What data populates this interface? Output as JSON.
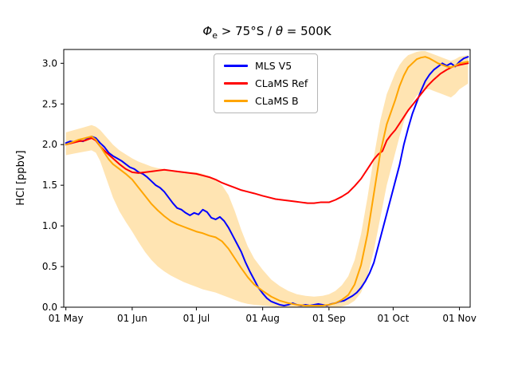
{
  "title": {
    "phi": "Φ",
    "sub_e": "e",
    "mid": " > 75°S / ",
    "theta": "θ",
    "end": " = 500K"
  },
  "chart_data": {
    "type": "line",
    "title": "Φe > 75°S / θ = 500K",
    "xlabel": "",
    "ylabel": "HCl [ppbv]",
    "xtick_labels": [
      "01 May",
      "01 Jun",
      "01 Jul",
      "01 Aug",
      "01 Sep",
      "01 Oct",
      "01 Nov"
    ],
    "xtick_days": [
      0,
      31,
      61,
      92,
      123,
      153,
      184
    ],
    "ytick_values": [
      0.0,
      0.5,
      1.0,
      1.5,
      2.0,
      2.5,
      3.0
    ],
    "xlim_days": [
      -1,
      189
    ],
    "ylim": [
      0,
      3.17
    ],
    "grid": false,
    "legend_position": "upper center",
    "band_color": "#ffa500",
    "band_opacity": 0.3,
    "series": [
      {
        "name": "MLS V5",
        "color": "#0000ff",
        "points": [
          [
            0,
            2.02
          ],
          [
            2,
            2.04
          ],
          [
            4,
            2.03
          ],
          [
            6,
            2.05
          ],
          [
            8,
            2.04
          ],
          [
            10,
            2.07
          ],
          [
            12,
            2.1
          ],
          [
            14,
            2.08
          ],
          [
            16,
            2.02
          ],
          [
            18,
            1.97
          ],
          [
            20,
            1.9
          ],
          [
            22,
            1.86
          ],
          [
            24,
            1.83
          ],
          [
            26,
            1.8
          ],
          [
            28,
            1.76
          ],
          [
            30,
            1.72
          ],
          [
            32,
            1.7
          ],
          [
            34,
            1.66
          ],
          [
            36,
            1.64
          ],
          [
            38,
            1.6
          ],
          [
            40,
            1.55
          ],
          [
            42,
            1.5
          ],
          [
            44,
            1.47
          ],
          [
            46,
            1.42
          ],
          [
            48,
            1.35
          ],
          [
            50,
            1.28
          ],
          [
            52,
            1.22
          ],
          [
            54,
            1.2
          ],
          [
            56,
            1.16
          ],
          [
            58,
            1.13
          ],
          [
            60,
            1.16
          ],
          [
            62,
            1.14
          ],
          [
            64,
            1.2
          ],
          [
            66,
            1.17
          ],
          [
            68,
            1.1
          ],
          [
            70,
            1.08
          ],
          [
            72,
            1.11
          ],
          [
            74,
            1.06
          ],
          [
            76,
            0.98
          ],
          [
            78,
            0.88
          ],
          [
            80,
            0.78
          ],
          [
            82,
            0.68
          ],
          [
            84,
            0.55
          ],
          [
            86,
            0.44
          ],
          [
            88,
            0.34
          ],
          [
            90,
            0.24
          ],
          [
            92,
            0.17
          ],
          [
            94,
            0.11
          ],
          [
            96,
            0.07
          ],
          [
            98,
            0.05
          ],
          [
            100,
            0.03
          ],
          [
            102,
            0.02
          ],
          [
            104,
            0.03
          ],
          [
            106,
            0.05
          ],
          [
            108,
            0.03
          ],
          [
            110,
            0.02
          ],
          [
            112,
            0.03
          ],
          [
            114,
            0.02
          ],
          [
            116,
            0.03
          ],
          [
            118,
            0.04
          ],
          [
            120,
            0.03
          ],
          [
            122,
            0.02
          ],
          [
            124,
            0.04
          ],
          [
            126,
            0.05
          ],
          [
            128,
            0.07
          ],
          [
            130,
            0.08
          ],
          [
            132,
            0.11
          ],
          [
            134,
            0.14
          ],
          [
            136,
            0.18
          ],
          [
            138,
            0.24
          ],
          [
            140,
            0.32
          ],
          [
            142,
            0.42
          ],
          [
            144,
            0.55
          ],
          [
            146,
            0.75
          ],
          [
            148,
            0.95
          ],
          [
            150,
            1.15
          ],
          [
            152,
            1.35
          ],
          [
            154,
            1.55
          ],
          [
            156,
            1.75
          ],
          [
            158,
            2.0
          ],
          [
            160,
            2.2
          ],
          [
            162,
            2.38
          ],
          [
            164,
            2.52
          ],
          [
            166,
            2.66
          ],
          [
            168,
            2.78
          ],
          [
            170,
            2.86
          ],
          [
            172,
            2.92
          ],
          [
            174,
            2.96
          ],
          [
            176,
            3.0
          ],
          [
            178,
            2.97
          ],
          [
            180,
            3.0
          ],
          [
            182,
            2.96
          ],
          [
            184,
            3.02
          ],
          [
            186,
            3.06
          ],
          [
            188,
            3.08
          ]
        ]
      },
      {
        "name": "CLaMS Ref",
        "color": "#ff0000",
        "points": [
          [
            0,
            2.0
          ],
          [
            3,
            2.02
          ],
          [
            6,
            2.04
          ],
          [
            9,
            2.05
          ],
          [
            12,
            2.08
          ],
          [
            14,
            2.05
          ],
          [
            16,
            1.98
          ],
          [
            19,
            1.9
          ],
          [
            22,
            1.83
          ],
          [
            25,
            1.76
          ],
          [
            28,
            1.7
          ],
          [
            31,
            1.66
          ],
          [
            34,
            1.65
          ],
          [
            37,
            1.66
          ],
          [
            40,
            1.67
          ],
          [
            43,
            1.68
          ],
          [
            46,
            1.69
          ],
          [
            49,
            1.68
          ],
          [
            52,
            1.67
          ],
          [
            55,
            1.66
          ],
          [
            58,
            1.65
          ],
          [
            61,
            1.64
          ],
          [
            64,
            1.62
          ],
          [
            67,
            1.6
          ],
          [
            70,
            1.57
          ],
          [
            73,
            1.53
          ],
          [
            76,
            1.5
          ],
          [
            79,
            1.47
          ],
          [
            82,
            1.44
          ],
          [
            85,
            1.42
          ],
          [
            88,
            1.4
          ],
          [
            92,
            1.37
          ],
          [
            95,
            1.35
          ],
          [
            98,
            1.33
          ],
          [
            101,
            1.32
          ],
          [
            104,
            1.31
          ],
          [
            107,
            1.3
          ],
          [
            110,
            1.29
          ],
          [
            113,
            1.28
          ],
          [
            116,
            1.28
          ],
          [
            119,
            1.29
          ],
          [
            123,
            1.29
          ],
          [
            126,
            1.32
          ],
          [
            129,
            1.36
          ],
          [
            132,
            1.41
          ],
          [
            135,
            1.49
          ],
          [
            138,
            1.58
          ],
          [
            141,
            1.7
          ],
          [
            144,
            1.82
          ],
          [
            146,
            1.88
          ],
          [
            148,
            1.92
          ],
          [
            150,
            2.05
          ],
          [
            152,
            2.12
          ],
          [
            154,
            2.18
          ],
          [
            157,
            2.3
          ],
          [
            160,
            2.42
          ],
          [
            163,
            2.52
          ],
          [
            166,
            2.62
          ],
          [
            169,
            2.72
          ],
          [
            172,
            2.8
          ],
          [
            175,
            2.87
          ],
          [
            178,
            2.92
          ],
          [
            181,
            2.96
          ],
          [
            184,
            2.98
          ],
          [
            188,
            3.0
          ]
        ]
      },
      {
        "name": "CLaMS B",
        "color": "#ffa500",
        "points": [
          [
            0,
            2.0
          ],
          [
            3,
            2.03
          ],
          [
            6,
            2.06
          ],
          [
            9,
            2.08
          ],
          [
            12,
            2.1
          ],
          [
            14,
            2.06
          ],
          [
            16,
            1.98
          ],
          [
            18,
            1.9
          ],
          [
            20,
            1.82
          ],
          [
            22,
            1.76
          ],
          [
            25,
            1.7
          ],
          [
            28,
            1.64
          ],
          [
            31,
            1.57
          ],
          [
            34,
            1.47
          ],
          [
            37,
            1.37
          ],
          [
            40,
            1.27
          ],
          [
            43,
            1.19
          ],
          [
            46,
            1.12
          ],
          [
            49,
            1.06
          ],
          [
            52,
            1.02
          ],
          [
            55,
            0.99
          ],
          [
            58,
            0.96
          ],
          [
            61,
            0.93
          ],
          [
            64,
            0.91
          ],
          [
            67,
            0.88
          ],
          [
            70,
            0.86
          ],
          [
            73,
            0.81
          ],
          [
            76,
            0.72
          ],
          [
            79,
            0.6
          ],
          [
            82,
            0.48
          ],
          [
            85,
            0.37
          ],
          [
            88,
            0.28
          ],
          [
            92,
            0.2
          ],
          [
            96,
            0.13
          ],
          [
            100,
            0.08
          ],
          [
            104,
            0.05
          ],
          [
            108,
            0.03
          ],
          [
            112,
            0.02
          ],
          [
            116,
            0.02
          ],
          [
            120,
            0.02
          ],
          [
            123,
            0.03
          ],
          [
            126,
            0.05
          ],
          [
            129,
            0.09
          ],
          [
            132,
            0.15
          ],
          [
            135,
            0.28
          ],
          [
            138,
            0.52
          ],
          [
            141,
            0.9
          ],
          [
            144,
            1.4
          ],
          [
            147,
            1.9
          ],
          [
            150,
            2.25
          ],
          [
            152,
            2.4
          ],
          [
            154,
            2.55
          ],
          [
            156,
            2.72
          ],
          [
            158,
            2.85
          ],
          [
            160,
            2.95
          ],
          [
            162,
            3.0
          ],
          [
            164,
            3.05
          ],
          [
            166,
            3.07
          ],
          [
            168,
            3.08
          ],
          [
            170,
            3.06
          ],
          [
            172,
            3.03
          ],
          [
            174,
            3.0
          ],
          [
            176,
            2.98
          ],
          [
            178,
            2.96
          ],
          [
            180,
            2.95
          ],
          [
            182,
            2.97
          ],
          [
            184,
            3.0
          ],
          [
            188,
            3.02
          ]
        ],
        "band": {
          "days": [
            0,
            4,
            8,
            12,
            14,
            16,
            18,
            20,
            22,
            25,
            28,
            31,
            34,
            37,
            40,
            43,
            46,
            49,
            52,
            55,
            58,
            61,
            64,
            67,
            70,
            73,
            76,
            79,
            82,
            85,
            88,
            92,
            96,
            100,
            104,
            108,
            112,
            116,
            120,
            123,
            126,
            129,
            132,
            135,
            138,
            141,
            144,
            147,
            150,
            152,
            154,
            156,
            158,
            160,
            162,
            164,
            166,
            168,
            170,
            172,
            174,
            176,
            178,
            180,
            182,
            184,
            188
          ],
          "lower": [
            1.87,
            1.89,
            1.91,
            1.93,
            1.9,
            1.8,
            1.65,
            1.5,
            1.35,
            1.18,
            1.05,
            0.93,
            0.8,
            0.68,
            0.58,
            0.5,
            0.44,
            0.39,
            0.35,
            0.31,
            0.28,
            0.25,
            0.22,
            0.2,
            0.18,
            0.15,
            0.12,
            0.09,
            0.06,
            0.04,
            0.03,
            0.02,
            0.01,
            0.0,
            0.0,
            0.0,
            0.0,
            0.0,
            0.0,
            0.0,
            0.0,
            0.01,
            0.03,
            0.08,
            0.18,
            0.38,
            0.7,
            1.1,
            1.5,
            1.7,
            1.9,
            2.1,
            2.28,
            2.42,
            2.52,
            2.6,
            2.65,
            2.68,
            2.68,
            2.66,
            2.64,
            2.62,
            2.6,
            2.58,
            2.62,
            2.68,
            2.75
          ],
          "upper": [
            2.15,
            2.18,
            2.21,
            2.24,
            2.22,
            2.18,
            2.12,
            2.06,
            2.0,
            1.93,
            1.88,
            1.83,
            1.79,
            1.76,
            1.73,
            1.71,
            1.7,
            1.69,
            1.68,
            1.67,
            1.66,
            1.66,
            1.64,
            1.61,
            1.57,
            1.5,
            1.38,
            1.18,
            0.95,
            0.75,
            0.6,
            0.46,
            0.34,
            0.26,
            0.2,
            0.16,
            0.14,
            0.13,
            0.14,
            0.16,
            0.2,
            0.27,
            0.38,
            0.58,
            0.9,
            1.35,
            1.85,
            2.3,
            2.62,
            2.75,
            2.88,
            2.98,
            3.05,
            3.1,
            3.12,
            3.14,
            3.15,
            3.15,
            3.13,
            3.11,
            3.09,
            3.07,
            3.05,
            3.03,
            3.05,
            3.08,
            3.1
          ]
        }
      }
    ]
  }
}
